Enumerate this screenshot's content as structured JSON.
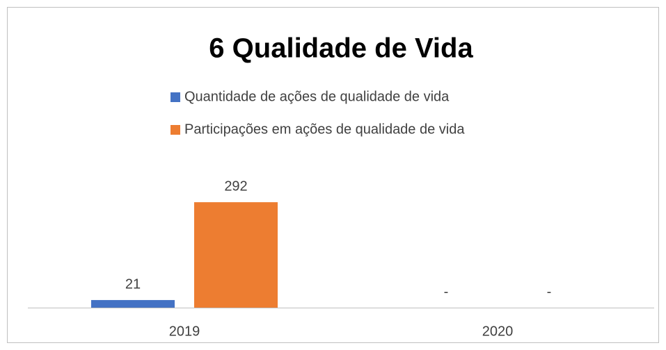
{
  "chart_data": {
    "type": "bar",
    "title": "6 Qualidade de Vida",
    "categories": [
      "2019",
      "2020"
    ],
    "series": [
      {
        "name": "Quantidade de ações de qualidade de vida",
        "color": "#4472c4",
        "values": [
          21,
          0
        ],
        "value_labels": [
          "21",
          "-"
        ]
      },
      {
        "name": "Participações em ações de qualidade de vida",
        "color": "#ed7d31",
        "values": [
          292,
          0
        ],
        "value_labels": [
          "292",
          "-"
        ]
      }
    ],
    "ylim": [
      0,
      400
    ]
  }
}
